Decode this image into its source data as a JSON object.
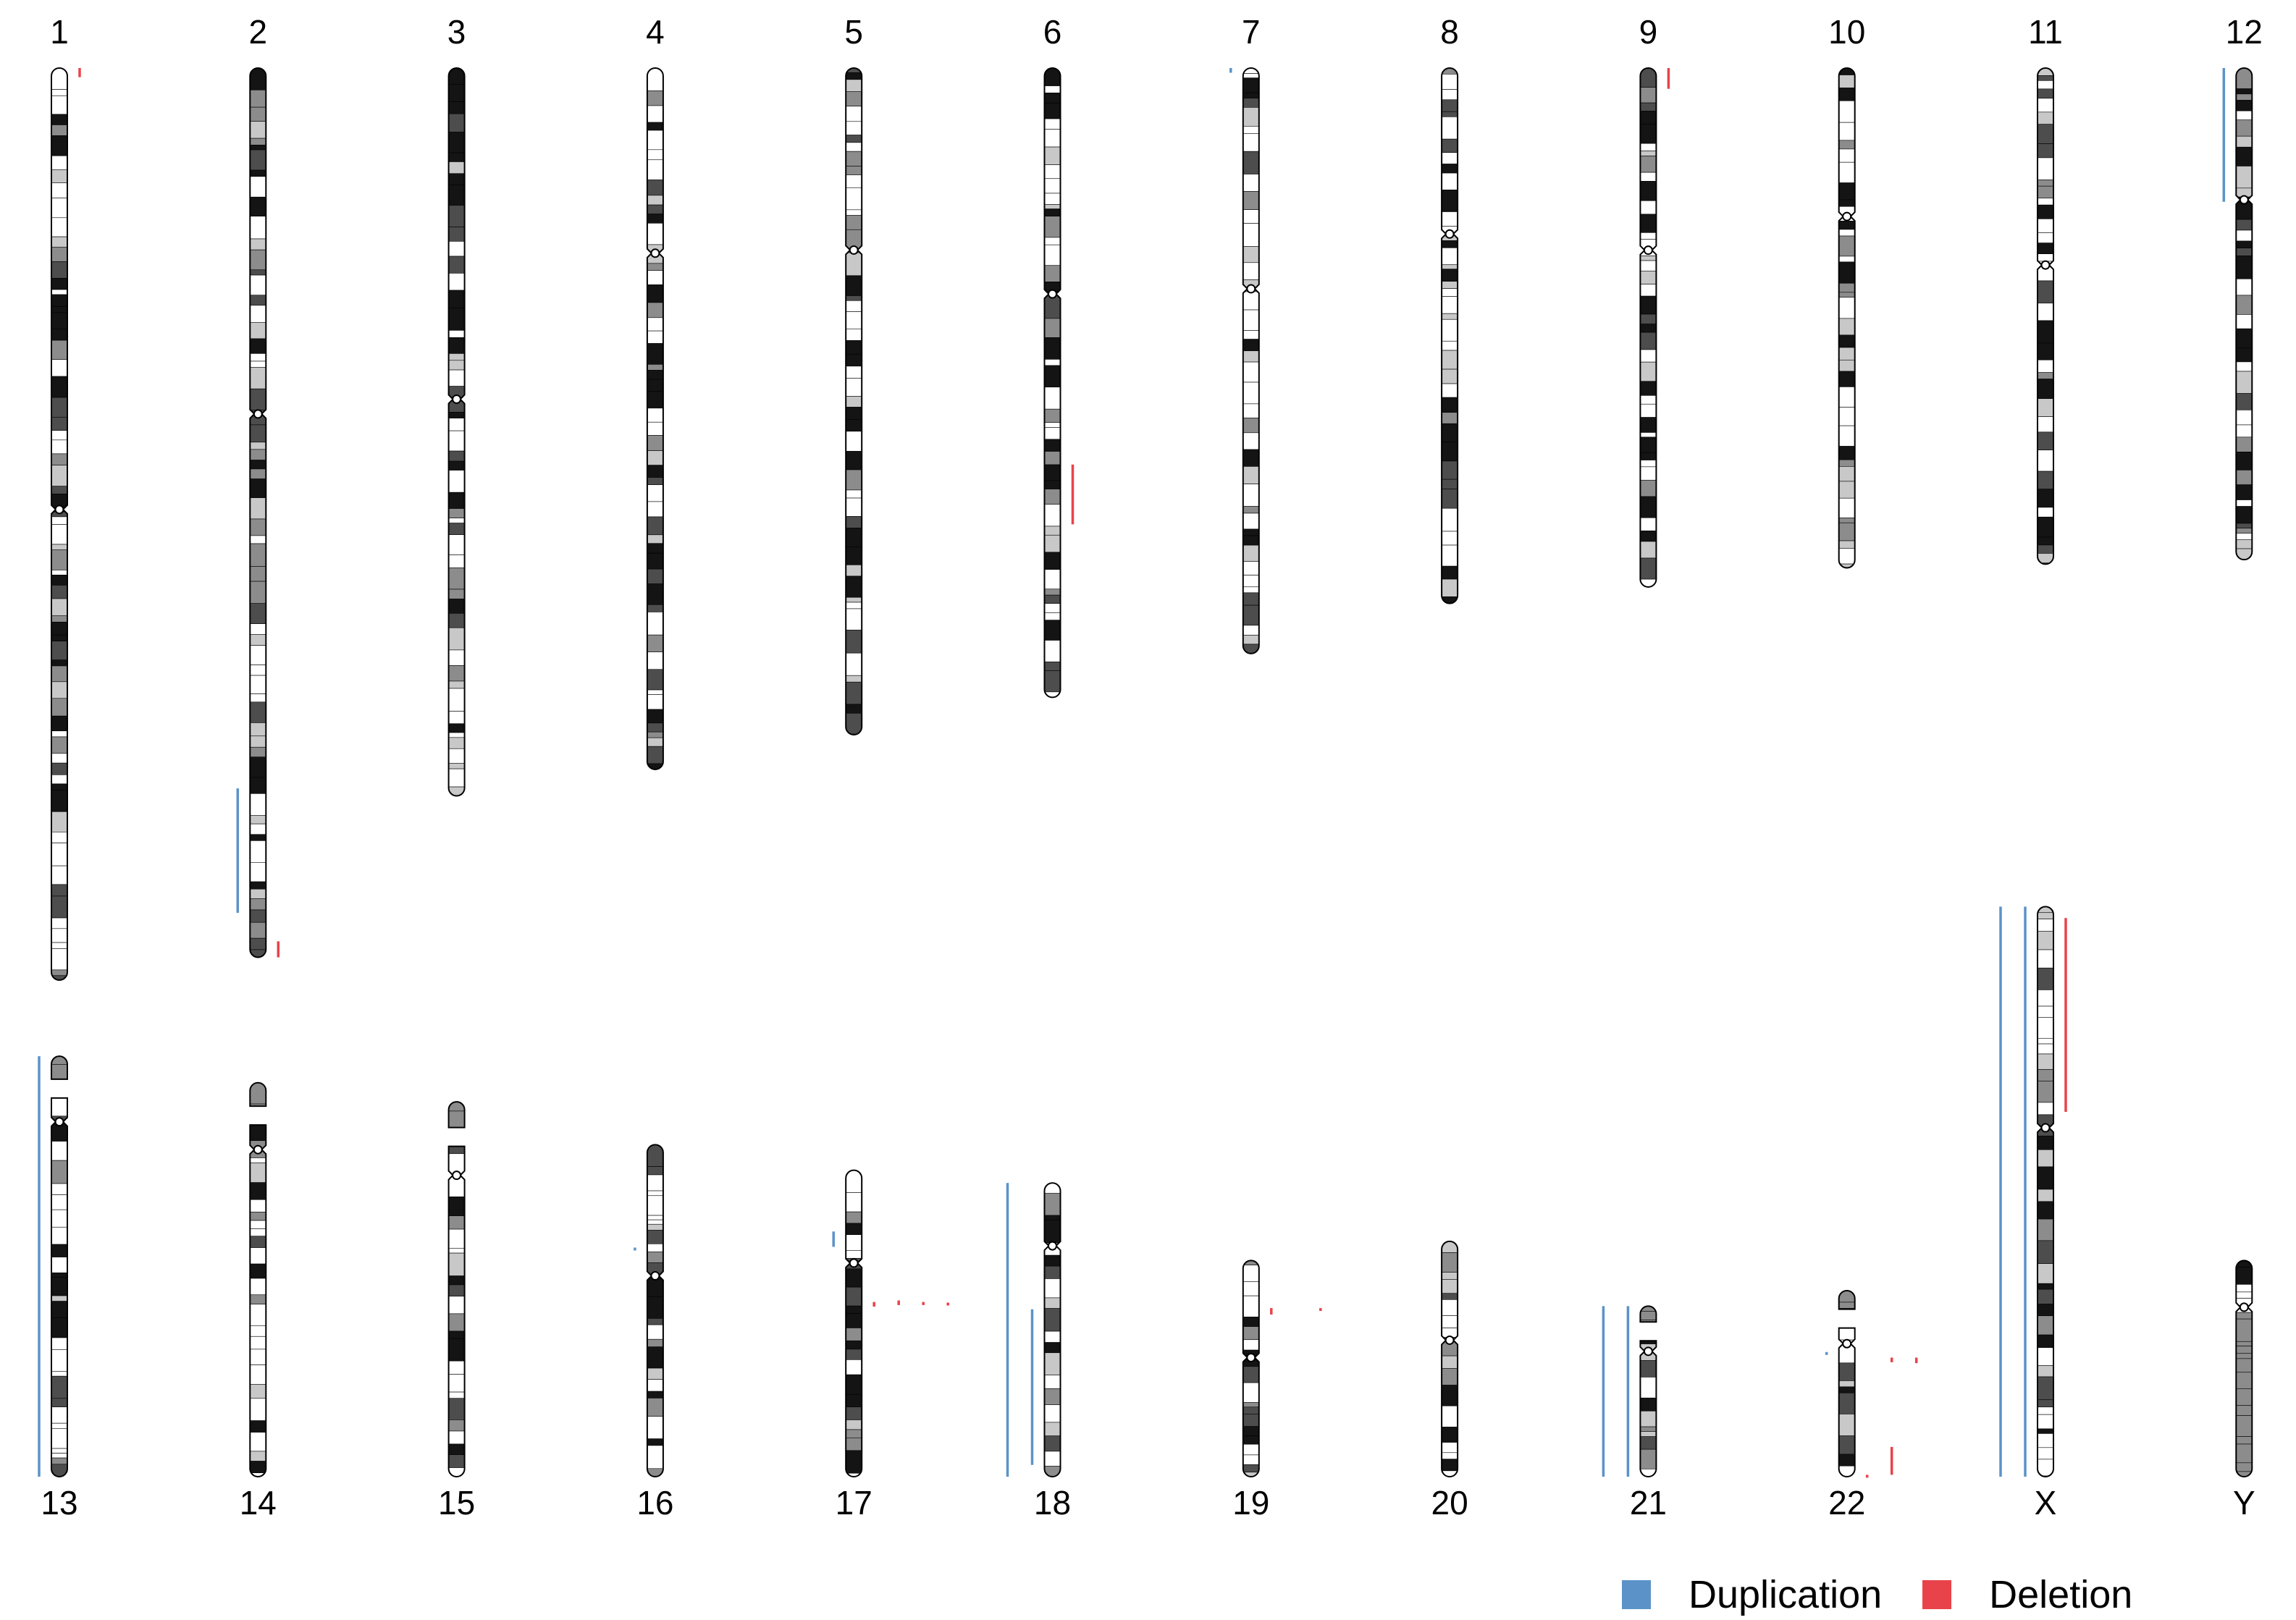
{
  "chromosomes": [
    {
      "label": "1",
      "p": 0.484,
      "len": 1.0,
      "seed": 11,
      "acro": false
    },
    {
      "label": "2",
      "p": 0.389,
      "len": 0.975,
      "seed": 23,
      "acro": false
    },
    {
      "label": "3",
      "p": 0.455,
      "len": 0.798,
      "seed": 37,
      "acro": false
    },
    {
      "label": "4",
      "p": 0.264,
      "len": 0.769,
      "seed": 41,
      "acro": false
    },
    {
      "label": "5",
      "p": 0.273,
      "len": 0.731,
      "seed": 53,
      "acro": false
    },
    {
      "label": "6",
      "p": 0.359,
      "len": 0.69,
      "seed": 67,
      "acro": false
    },
    {
      "label": "7",
      "p": 0.377,
      "len": 0.642,
      "seed": 71,
      "acro": false
    },
    {
      "label": "8",
      "p": 0.31,
      "len": 0.587,
      "seed": 83,
      "acro": false
    },
    {
      "label": "9",
      "p": 0.351,
      "len": 0.569,
      "seed": 97,
      "acro": false
    },
    {
      "label": "10",
      "p": 0.297,
      "len": 0.548,
      "seed": 101,
      "acro": false
    },
    {
      "label": "11",
      "p": 0.397,
      "len": 0.544,
      "seed": 113,
      "acro": false
    },
    {
      "label": "12",
      "p": 0.268,
      "len": 0.539,
      "seed": 127,
      "acro": false
    },
    {
      "label": "13",
      "p": 0.156,
      "len": 0.461,
      "seed": 131,
      "acro": true
    },
    {
      "label": "14",
      "p": 0.17,
      "len": 0.432,
      "seed": 139,
      "acro": true
    },
    {
      "label": "15",
      "p": 0.196,
      "len": 0.411,
      "seed": 149,
      "acro": true
    },
    {
      "label": "16",
      "p": 0.395,
      "len": 0.364,
      "seed": 151,
      "acro": false
    },
    {
      "label": "17",
      "p": 0.303,
      "len": 0.336,
      "seed": 163,
      "acro": false
    },
    {
      "label": "18",
      "p": 0.214,
      "len": 0.322,
      "seed": 173,
      "acro": false
    },
    {
      "label": "19",
      "p": 0.449,
      "len": 0.237,
      "seed": 181,
      "acro": false
    },
    {
      "label": "20",
      "p": 0.42,
      "len": 0.258,
      "seed": 191,
      "acro": false
    },
    {
      "label": "21",
      "p": 0.265,
      "len": 0.187,
      "seed": 193,
      "acro": true
    },
    {
      "label": "22",
      "p": 0.285,
      "len": 0.204,
      "seed": 197,
      "acro": true
    },
    {
      "label": "X",
      "p": 0.388,
      "len": 0.625,
      "seed": 211,
      "acro": false
    },
    {
      "label": "Y",
      "p": 0.216,
      "len": 0.237,
      "seed": 223,
      "acro": false,
      "gray_q": true
    }
  ],
  "cnv_segments": [
    {
      "chr": "1",
      "type": "deletion",
      "side": "right",
      "col": 0,
      "start": 0.0,
      "end": 0.01
    },
    {
      "chr": "2",
      "type": "duplication",
      "side": "left",
      "col": 0,
      "start": 0.81,
      "end": 0.95
    },
    {
      "chr": "2",
      "type": "deletion",
      "side": "right",
      "col": 0,
      "start": 0.982,
      "end": 1.0
    },
    {
      "chr": "6",
      "type": "deletion",
      "side": "right",
      "col": 0,
      "start": 0.63,
      "end": 0.725
    },
    {
      "chr": "7",
      "type": "duplication",
      "side": "left",
      "col": 0,
      "start": 0.0,
      "end": 0.008
    },
    {
      "chr": "9",
      "type": "deletion",
      "side": "right",
      "col": 0,
      "start": 0.0,
      "end": 0.04
    },
    {
      "chr": "12",
      "type": "duplication",
      "side": "left",
      "col": 0,
      "start": 0.0,
      "end": 0.272
    },
    {
      "chr": "13",
      "type": "duplication",
      "side": "left",
      "col": 0,
      "start": 0.0,
      "end": 1.0
    },
    {
      "chr": "16",
      "type": "duplication",
      "side": "left",
      "col": 0,
      "start": 0.31,
      "end": 0.318
    },
    {
      "chr": "17",
      "type": "duplication",
      "side": "left",
      "col": 0,
      "start": 0.2,
      "end": 0.25
    },
    {
      "chr": "17",
      "type": "deletion",
      "side": "right",
      "col": 0,
      "start": 0.43,
      "end": 0.445
    },
    {
      "chr": "17",
      "type": "deletion",
      "side": "right",
      "col": 1,
      "start": 0.425,
      "end": 0.44
    },
    {
      "chr": "17",
      "type": "deletion",
      "side": "right",
      "col": 2,
      "start": 0.43,
      "end": 0.44
    },
    {
      "chr": "17",
      "type": "deletion",
      "side": "right",
      "col": 3,
      "start": 0.432,
      "end": 0.44
    },
    {
      "chr": "18",
      "type": "duplication",
      "side": "left",
      "col": 1,
      "start": 0.0,
      "end": 1.0
    },
    {
      "chr": "18",
      "type": "duplication",
      "side": "left",
      "col": 0,
      "start": 0.43,
      "end": 0.96
    },
    {
      "chr": "19",
      "type": "deletion",
      "side": "right",
      "col": 0,
      "start": 0.22,
      "end": 0.25
    },
    {
      "chr": "19",
      "type": "deletion",
      "side": "right",
      "col": 2,
      "start": 0.22,
      "end": 0.228
    },
    {
      "chr": "21",
      "type": "duplication",
      "side": "left",
      "col": 1,
      "start": 0.0,
      "end": 1.0
    },
    {
      "chr": "21",
      "type": "duplication",
      "side": "left",
      "col": 0,
      "start": 0.0,
      "end": 1.0
    },
    {
      "chr": "22",
      "type": "duplication",
      "side": "left",
      "col": 0,
      "start": 0.33,
      "end": 0.345
    },
    {
      "chr": "22",
      "type": "deletion",
      "side": "right",
      "col": 1,
      "start": 0.36,
      "end": 0.385
    },
    {
      "chr": "22",
      "type": "deletion",
      "side": "right",
      "col": 2,
      "start": 0.36,
      "end": 0.39
    },
    {
      "chr": "22",
      "type": "deletion",
      "side": "right",
      "col": 0,
      "start": 0.99,
      "end": 1.0
    },
    {
      "chr": "22",
      "type": "deletion",
      "side": "right",
      "col": 1,
      "start": 0.84,
      "end": 0.99
    },
    {
      "chr": "X",
      "type": "duplication",
      "side": "left",
      "col": 1,
      "start": 0.0,
      "end": 1.0
    },
    {
      "chr": "X",
      "type": "duplication",
      "side": "left",
      "col": 0,
      "start": 0.0,
      "end": 1.0
    },
    {
      "chr": "X",
      "type": "deletion",
      "side": "right",
      "col": 0,
      "start": 0.02,
      "end": 0.36
    }
  ],
  "legend": [
    {
      "key": "duplication",
      "label": "Duplication",
      "color": "#5b93c8"
    },
    {
      "key": "deletion",
      "label": "Deletion",
      "color": "#e8434a"
    }
  ],
  "colors": {
    "duplication": "#5b93c8",
    "deletion": "#e8434a",
    "gneg": "#ffffff",
    "gpos25": "#c8c8c8",
    "gpos50": "#8c8c8c",
    "gpos75": "#4d4d4d",
    "gpos100": "#141414",
    "outline": "#000000"
  }
}
